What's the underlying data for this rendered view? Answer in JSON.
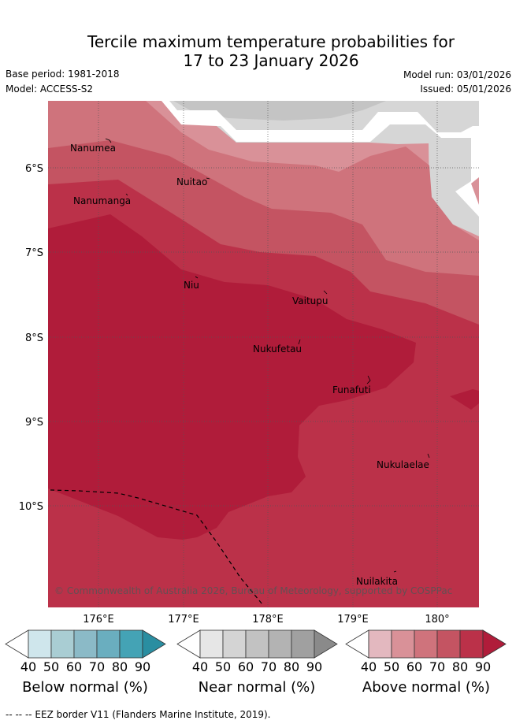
{
  "title": {
    "line1": "Tercile maximum temperature probabilities for",
    "line2": "17 to 23 January 2026"
  },
  "meta": {
    "base_period": "Base period: 1981-2018",
    "model": "Model: ACCESS-S2",
    "model_run": "Model run: 03/01/2026",
    "issued": "Issued: 05/01/2026"
  },
  "map": {
    "lat_labels": [
      "6°S",
      "7°S",
      "8°S",
      "9°S",
      "10°S"
    ],
    "lon_labels": [
      "176°E",
      "177°E",
      "178°E",
      "179°E",
      "180°"
    ],
    "places": [
      "Nanumea",
      "Nanumanga",
      "Nuitao",
      "Niu",
      "Vaitupu",
      "Nukufetau",
      "Funafuti",
      "Nukulaelae",
      "Nuilakita"
    ],
    "copyright": "© Commonwealth of Australia 2026, Bureau of Meteorology, supported by COSPPac"
  },
  "colorbars": [
    {
      "label": "Below normal (%)",
      "ticks": [
        "40",
        "50",
        "60",
        "70",
        "80",
        "90"
      ],
      "colors": [
        "#ffffff",
        "#cfe6ec",
        "#a9cdd3",
        "#8bbac7",
        "#6aaebf",
        "#44a3b5",
        "#2a8ea1"
      ]
    },
    {
      "label": "Near normal (%)",
      "ticks": [
        "40",
        "50",
        "60",
        "70",
        "80",
        "90"
      ],
      "colors": [
        "#ffffff",
        "#e6e6e6",
        "#d4d4d4",
        "#c2c2c2",
        "#b3b3b3",
        "#a0a0a0",
        "#8a8a8a"
      ]
    },
    {
      "label": "Above normal (%)",
      "ticks": [
        "40",
        "50",
        "60",
        "70",
        "80",
        "90"
      ],
      "colors": [
        "#ffffff",
        "#e3b8bf",
        "#d99198",
        "#cf737c",
        "#c45462",
        "#bb3149",
        "#b01c3a"
      ]
    }
  ],
  "footer": "--  --  -- EEZ border V11 (Flanders Marine Institute, 2019)."
}
